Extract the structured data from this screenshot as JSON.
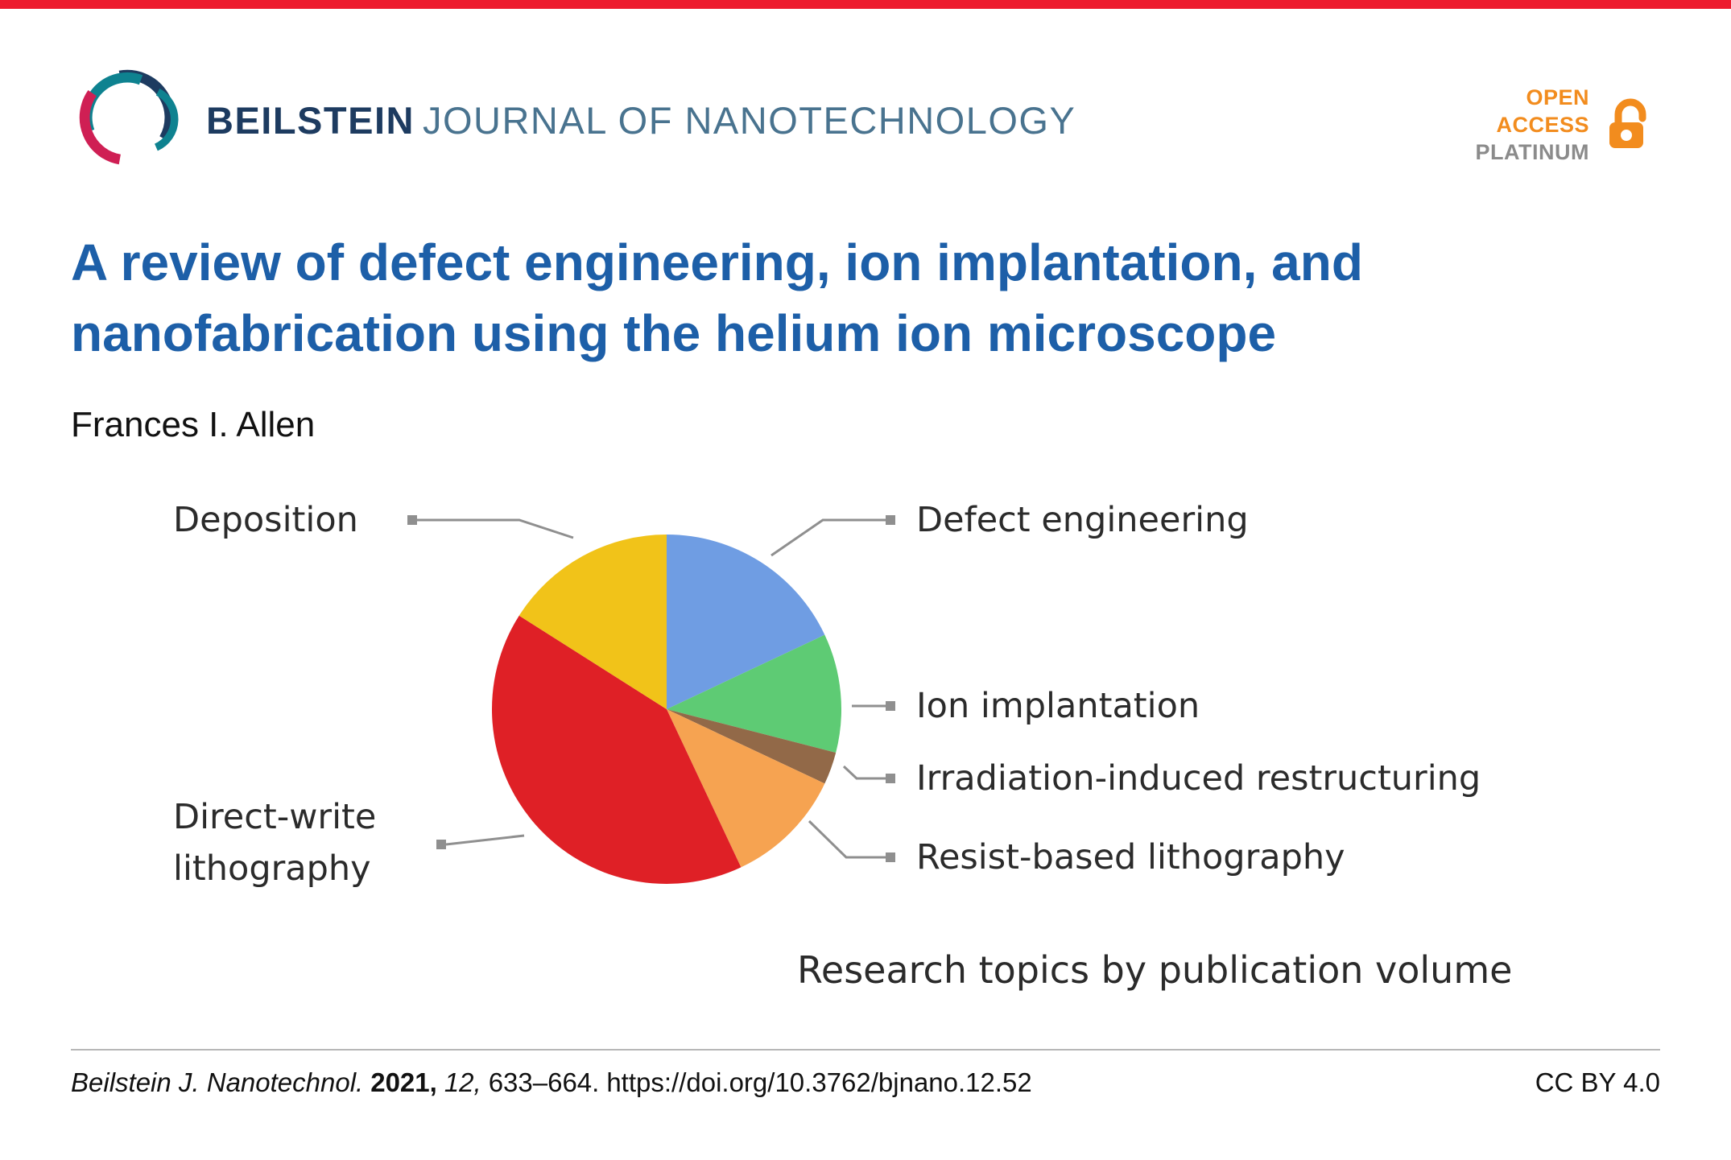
{
  "header": {
    "brand_bold": "BEILSTEIN",
    "brand_rest": "JOURNAL OF NANOTECHNOLOGY",
    "open_access": {
      "line1": "OPEN",
      "line2": "ACCESS",
      "line3": "PLATINUM"
    }
  },
  "article": {
    "title": "A review of defect engineering, ion implantation, and nanofabrication using the helium ion microscope",
    "author": "Frances I. Allen"
  },
  "chart_data": {
    "type": "pie",
    "title": "Research topics by publication volume",
    "direction": "clockwise",
    "start_angle_deg": 0,
    "legend_position": "callout-labels",
    "slices": [
      {
        "label": "Defect engineering",
        "value": 18,
        "color": "#6f9de3"
      },
      {
        "label": "Ion implantation",
        "value": 11,
        "color": "#5ecb74"
      },
      {
        "label": "Irradiation-induced restructuring",
        "value": 3,
        "color": "#926948"
      },
      {
        "label": "Resist-based lithography",
        "value": 11,
        "color": "#f6a351"
      },
      {
        "label": "Direct-write lithography",
        "value": 41,
        "color": "#df2026"
      },
      {
        "label": "Deposition",
        "value": 16,
        "color": "#f1c319"
      }
    ]
  },
  "footer": {
    "journal": "Beilstein J. Nanotechnol.",
    "year": "2021,",
    "volume": "12,",
    "pages": "633–664.",
    "doi": "https://doi.org/10.3762/bjnano.12.52",
    "license": "CC BY 4.0"
  },
  "colors": {
    "top_bar": "#ed1b2e",
    "title_blue": "#1d5fa8",
    "brand_dark": "#1d3b60",
    "brand_light": "#49738f",
    "open_access_orange": "#f28c1e",
    "platinum_gray": "#8b8b8b",
    "leader_line": "#8f8f8f"
  }
}
